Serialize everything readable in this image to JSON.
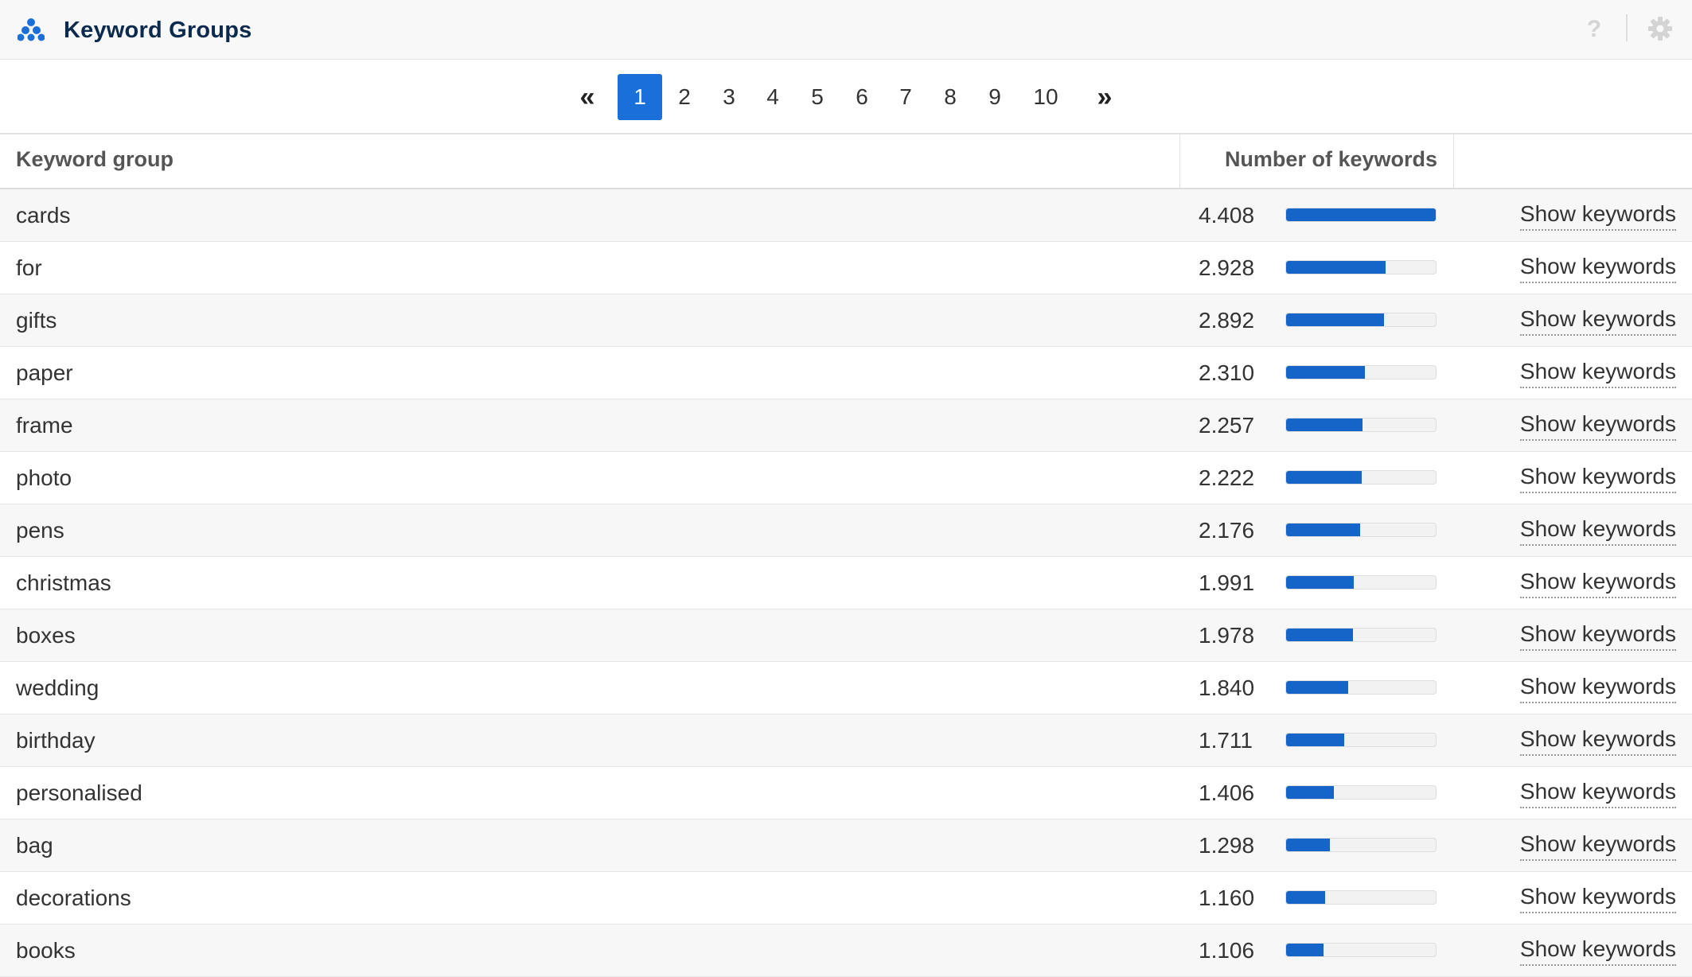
{
  "header": {
    "title": "Keyword Groups",
    "logo_icon": "network-dots-icon",
    "help_icon": "question-icon",
    "settings_icon": "gear-icon",
    "help_glyph": "?"
  },
  "pagination": {
    "first_label": "«",
    "last_label": "»",
    "pages": [
      "1",
      "2",
      "3",
      "4",
      "5",
      "6",
      "7",
      "8",
      "9",
      "10"
    ],
    "active_page": "1"
  },
  "table": {
    "columns": {
      "keyword_group": "Keyword group",
      "number_of_keywords": "Number of keywords"
    },
    "max_value": 4408,
    "rows": [
      {
        "group": "cards",
        "count": "4.408",
        "value": 4408,
        "action": "Show keywords"
      },
      {
        "group": "for",
        "count": "2.928",
        "value": 2928,
        "action": "Show keywords"
      },
      {
        "group": "gifts",
        "count": "2.892",
        "value": 2892,
        "action": "Show keywords"
      },
      {
        "group": "paper",
        "count": "2.310",
        "value": 2310,
        "action": "Show keywords"
      },
      {
        "group": "frame",
        "count": "2.257",
        "value": 2257,
        "action": "Show keywords"
      },
      {
        "group": "photo",
        "count": "2.222",
        "value": 2222,
        "action": "Show keywords"
      },
      {
        "group": "pens",
        "count": "2.176",
        "value": 2176,
        "action": "Show keywords"
      },
      {
        "group": "christmas",
        "count": "1.991",
        "value": 1991,
        "action": "Show keywords"
      },
      {
        "group": "boxes",
        "count": "1.978",
        "value": 1978,
        "action": "Show keywords"
      },
      {
        "group": "wedding",
        "count": "1.840",
        "value": 1840,
        "action": "Show keywords"
      },
      {
        "group": "birthday",
        "count": "1.711",
        "value": 1711,
        "action": "Show keywords"
      },
      {
        "group": "personalised",
        "count": "1.406",
        "value": 1406,
        "action": "Show keywords"
      },
      {
        "group": "bag",
        "count": "1.298",
        "value": 1298,
        "action": "Show keywords"
      },
      {
        "group": "decorations",
        "count": "1.160",
        "value": 1160,
        "action": "Show keywords"
      },
      {
        "group": "books",
        "count": "1.106",
        "value": 1106,
        "action": "Show keywords"
      }
    ]
  },
  "colors": {
    "accent": "#1a6fd8",
    "bar": "#1565c9",
    "title": "#0c2a4e"
  }
}
